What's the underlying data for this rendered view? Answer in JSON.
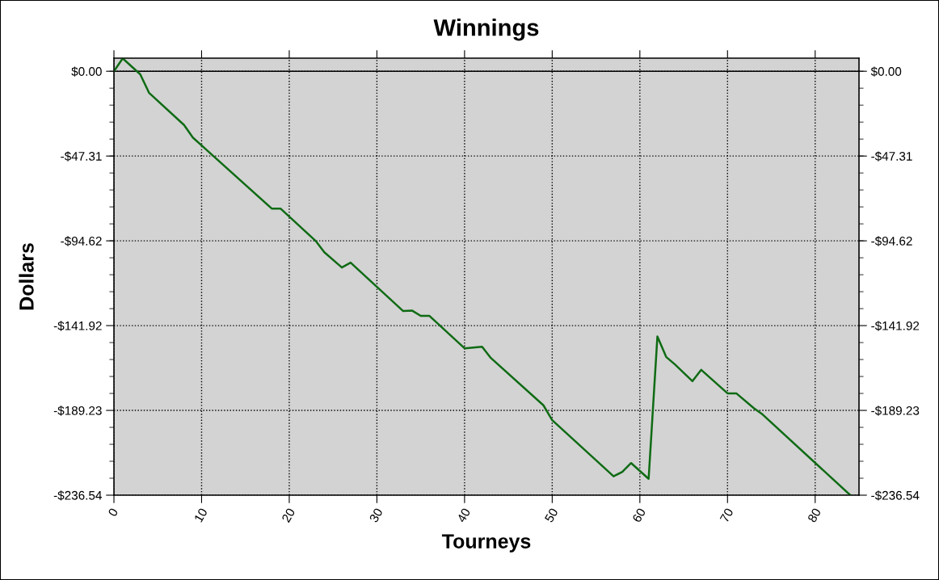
{
  "chart_data": {
    "type": "line",
    "title": "Winnings",
    "xlabel": "Tourneys",
    "ylabel": "Dollars",
    "x": [
      0,
      1,
      3,
      4,
      8,
      9,
      18,
      19,
      23,
      24,
      26,
      27,
      33,
      34,
      35,
      36,
      40,
      42,
      43,
      49,
      50,
      57,
      58,
      59,
      61,
      62,
      63,
      64,
      66,
      67,
      70,
      71,
      73,
      74,
      84
    ],
    "series": [
      {
        "color": "#0f6b14",
        "values": [
          0,
          7.2,
          -1.7,
          -12,
          -30,
          -37,
          -76.6,
          -76.6,
          -94.6,
          -101,
          -109.5,
          -106.8,
          -133.8,
          -133.5,
          -136.5,
          -136.5,
          -154.6,
          -153.7,
          -160,
          -186.4,
          -194.7,
          -226,
          -223.5,
          -218.6,
          -227.4,
          -148,
          -159.4,
          -163.6,
          -172.9,
          -166.6,
          -179.7,
          -179.7,
          -188,
          -191.5,
          -236.5
        ]
      }
    ],
    "xlim": [
      0,
      85
    ],
    "xticks": [
      0,
      10,
      20,
      30,
      40,
      50,
      60,
      70,
      80
    ],
    "ylim": [
      -236.54,
      7.3
    ],
    "yticks": [
      {
        "value": 0,
        "label": "$0.00"
      },
      {
        "value": -47.31,
        "label": "-$47.31"
      },
      {
        "value": -94.62,
        "label": "-$94.62"
      },
      {
        "value": -141.92,
        "label": "-$141.92"
      },
      {
        "value": -189.23,
        "label": "-$189.23"
      },
      {
        "value": -236.54,
        "label": "-$236.54"
      }
    ],
    "y2lim": [
      -236.54,
      7.3
    ],
    "y2ticks": [
      {
        "value": 0,
        "label": "$0.00"
      },
      {
        "value": -47.31,
        "label": "-$47.31"
      },
      {
        "value": -94.62,
        "label": "-$94.62"
      },
      {
        "value": -141.92,
        "label": "-$141.92"
      },
      {
        "value": -189.23,
        "label": "-$189.23"
      },
      {
        "value": -236.54,
        "label": "-$236.54"
      }
    ],
    "ref_lines": [
      {
        "axis": "y",
        "value": 0,
        "color": "#000000",
        "line_style": "solid"
      }
    ],
    "grid": true
  }
}
